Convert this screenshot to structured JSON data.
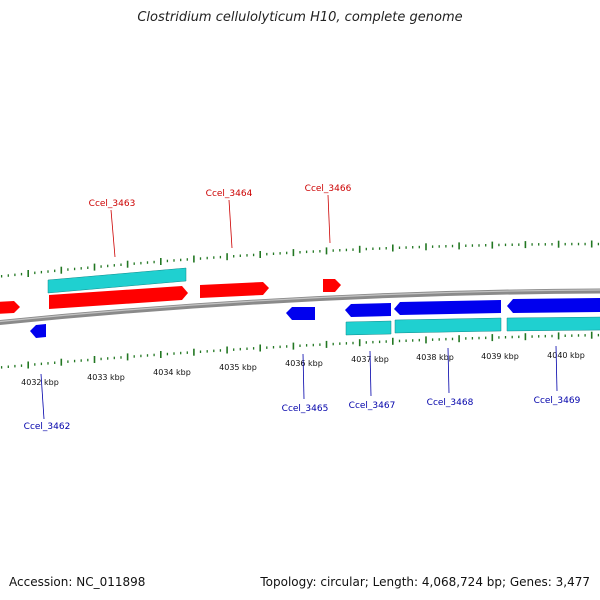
{
  "title": "Clostridium cellulolyticum H10, complete genome",
  "footer": {
    "accession": "Accession: NC_011898",
    "summary": "Topology: circular; Length: 4,068,724 bp; Genes: 3,477"
  },
  "colors": {
    "forward_gene": "#ff0000",
    "reverse_gene": "#0000ee",
    "cds": "#1fd0d0",
    "backbone": "#8a8a8a",
    "ticks": "#227722",
    "forward_label": "#cc0000",
    "reverse_label": "#0000aa"
  },
  "kbp_ticks": [
    "4032 kbp",
    "4033 kbp",
    "4034 kbp",
    "4035 kbp",
    "4036 kbp",
    "4037 kbp",
    "4038 kbp",
    "4039 kbp",
    "4040 kbp"
  ],
  "forward_gene_labels": [
    "Ccel_3463",
    "Ccel_3464",
    "Ccel_3466"
  ],
  "reverse_gene_labels": [
    "Ccel_3462",
    "Ccel_3465",
    "Ccel_3467",
    "Ccel_3468",
    "Ccel_3469"
  ]
}
